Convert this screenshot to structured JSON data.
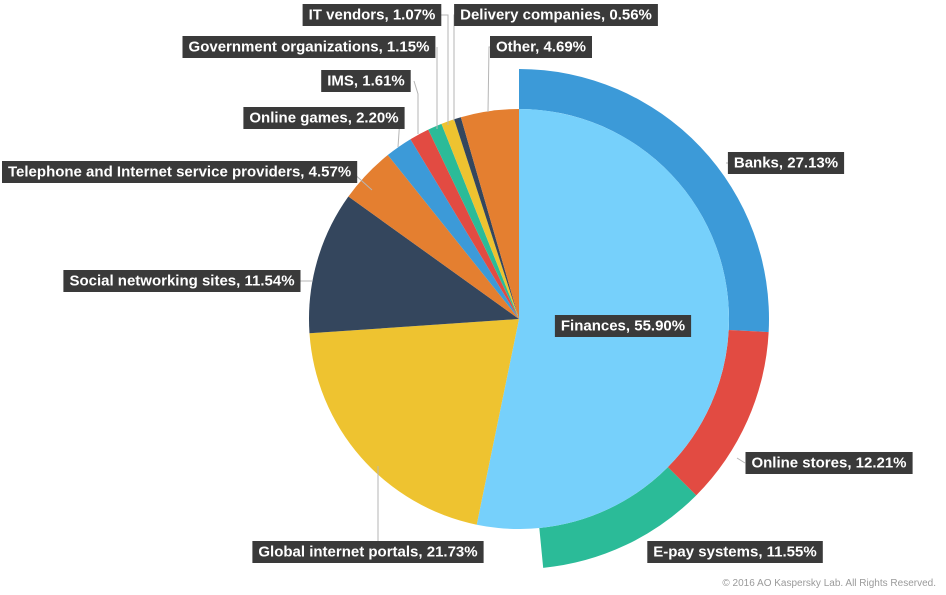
{
  "chart_data": {
    "type": "pie",
    "title": "",
    "slices": [
      {
        "label": "Finances, 55.90%",
        "value": 55.9,
        "color": "#76d0fb"
      },
      {
        "label": "Global internet portals, 21.73%",
        "value": 21.73,
        "color": "#eec330"
      },
      {
        "label": "Social networking sites, 11.54%",
        "value": 11.54,
        "color": "#34465d"
      },
      {
        "label": "Telephone and Internet service providers, 4.57%",
        "value": 4.57,
        "color": "#e47f30"
      },
      {
        "label": "Online games, 2.20%",
        "value": 2.2,
        "color": "#3c9ad8"
      },
      {
        "label": "IMS, 1.61%",
        "value": 1.61,
        "color": "#e24b42"
      },
      {
        "label": "Government organizations, 1.15%",
        "value": 1.15,
        "color": "#2bbb98"
      },
      {
        "label": "IT vendors, 1.07%",
        "value": 1.07,
        "color": "#eec330"
      },
      {
        "label": "Delivery companies, 0.56%",
        "value": 0.56,
        "color": "#34465d"
      },
      {
        "label": "Other, 4.69%",
        "value": 4.69,
        "color": "#e47f30"
      }
    ],
    "outer_ring": [
      {
        "label": "Banks, 27.13%",
        "value": 27.13,
        "color": "#3c9ad8"
      },
      {
        "label": "Online stores, 12.21%",
        "value": 12.21,
        "color": "#e24b42"
      },
      {
        "label": "E-pay systems, 11.55%",
        "value": 11.55,
        "color": "#2bbb98"
      }
    ],
    "label_box_color": "#3a3a3a",
    "leader_line_color": "#b5b5b5"
  },
  "copyright": "© 2016 AO Kaspersky Lab. All Rights Reserved."
}
